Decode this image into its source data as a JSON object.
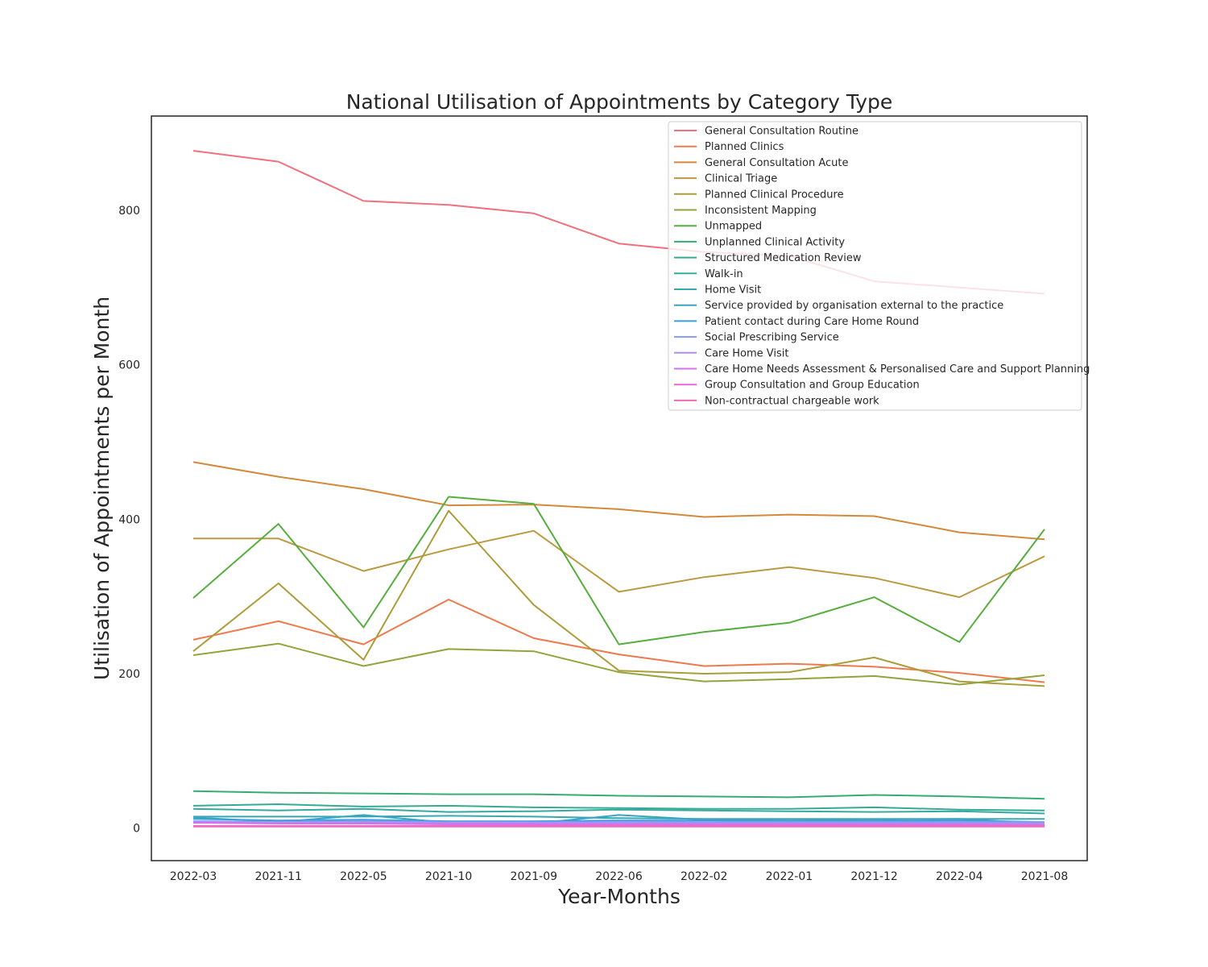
{
  "chart_data": {
    "type": "line",
    "title": "National Utilisation of Appointments by Category Type",
    "xlabel": "Year-Months",
    "ylabel": "Utilisation of Appointments per Month",
    "categories": [
      "2022-03",
      "2021-11",
      "2022-05",
      "2021-10",
      "2021-09",
      "2022-06",
      "2022-02",
      "2022-01",
      "2021-12",
      "2022-04",
      "2021-08"
    ],
    "y_ticks": [
      "0",
      "200",
      "400",
      "600",
      "800"
    ],
    "y_tick_values": [
      0,
      200,
      400,
      600,
      800
    ],
    "ylim": [
      -42,
      922
    ],
    "grid": false,
    "legend_position": "top-right",
    "series": [
      {
        "name": "General Consultation Routine",
        "color": "#f0707e",
        "values": [
          877,
          863,
          812,
          807,
          796,
          757,
          746,
          741,
          708,
          700,
          692
        ]
      },
      {
        "name": "Planned Clinics",
        "color": "#ee7a4c",
        "values": [
          244,
          268,
          238,
          296,
          246,
          225,
          210,
          213,
          209,
          201,
          189
        ]
      },
      {
        "name": "General Consultation Acute",
        "color": "#d4893a",
        "values": [
          474,
          455,
          439,
          418,
          419,
          413,
          403,
          406,
          404,
          383,
          374
        ]
      },
      {
        "name": "Clinical Triage",
        "color": "#bc9a42",
        "values": [
          375,
          375,
          333,
          361,
          385,
          306,
          325,
          338,
          324,
          299,
          352
        ]
      },
      {
        "name": "Planned Clinical Procedure",
        "color": "#ad9c3a",
        "values": [
          229,
          317,
          218,
          411,
          289,
          204,
          200,
          202,
          221,
          190,
          184
        ]
      },
      {
        "name": "Inconsistent Mapping",
        "color": "#92a43c",
        "values": [
          224,
          239,
          210,
          232,
          229,
          202,
          190,
          193,
          197,
          186,
          198
        ]
      },
      {
        "name": "Unmapped",
        "color": "#55ae3d",
        "values": [
          298,
          394,
          260,
          429,
          420,
          238,
          254,
          266,
          299,
          241,
          387
        ]
      },
      {
        "name": "Unplanned Clinical Activity",
        "color": "#36ad70",
        "values": [
          48,
          46,
          45,
          44,
          44,
          42,
          41,
          40,
          43,
          41,
          38
        ]
      },
      {
        "name": "Structured Medication Review",
        "color": "#35ab92",
        "values": [
          29,
          31,
          28,
          29,
          27,
          26,
          25,
          25,
          27,
          24,
          23
        ]
      },
      {
        "name": "Walk-in",
        "color": "#37a8a2",
        "values": [
          25,
          23,
          25,
          21,
          22,
          24,
          23,
          22,
          21,
          22,
          19
        ]
      },
      {
        "name": "Home Visit",
        "color": "#38a8b0",
        "values": [
          15,
          15,
          15,
          16,
          15,
          13,
          12,
          12,
          12,
          12,
          12
        ]
      },
      {
        "name": "Service provided by organisation external to the practice",
        "color": "#3aa5c0",
        "values": [
          14,
          8,
          17,
          7,
          6,
          17,
          11,
          10,
          11,
          12,
          6
        ]
      },
      {
        "name": "Patient contact during Care Home Round",
        "color": "#3a9fe0",
        "values": [
          12,
          10,
          11,
          9,
          9,
          10,
          10,
          9,
          9,
          10,
          8
        ]
      },
      {
        "name": "Social Prescribing Service",
        "color": "#8a9af0",
        "values": [
          9,
          8,
          9,
          8,
          8,
          8,
          8,
          8,
          8,
          8,
          8
        ]
      },
      {
        "name": "Care Home Visit",
        "color": "#b08cf2",
        "values": [
          8,
          7,
          7,
          7,
          7,
          7,
          6,
          6,
          6,
          6,
          6
        ]
      },
      {
        "name": "Care Home Needs Assessment & Personalised Care and Support Planning",
        "color": "#d672e8",
        "values": [
          7,
          6,
          6,
          5,
          5,
          5,
          5,
          5,
          5,
          5,
          4
        ]
      },
      {
        "name": "Group Consultation and Group Education",
        "color": "#e768d6",
        "values": [
          3,
          3,
          3,
          3,
          3,
          3,
          3,
          3,
          3,
          3,
          3
        ]
      },
      {
        "name": "Non-contractual chargeable work",
        "color": "#ee6cb6",
        "values": [
          2,
          2,
          2,
          2,
          2,
          2,
          2,
          2,
          2,
          2,
          2
        ]
      }
    ]
  }
}
